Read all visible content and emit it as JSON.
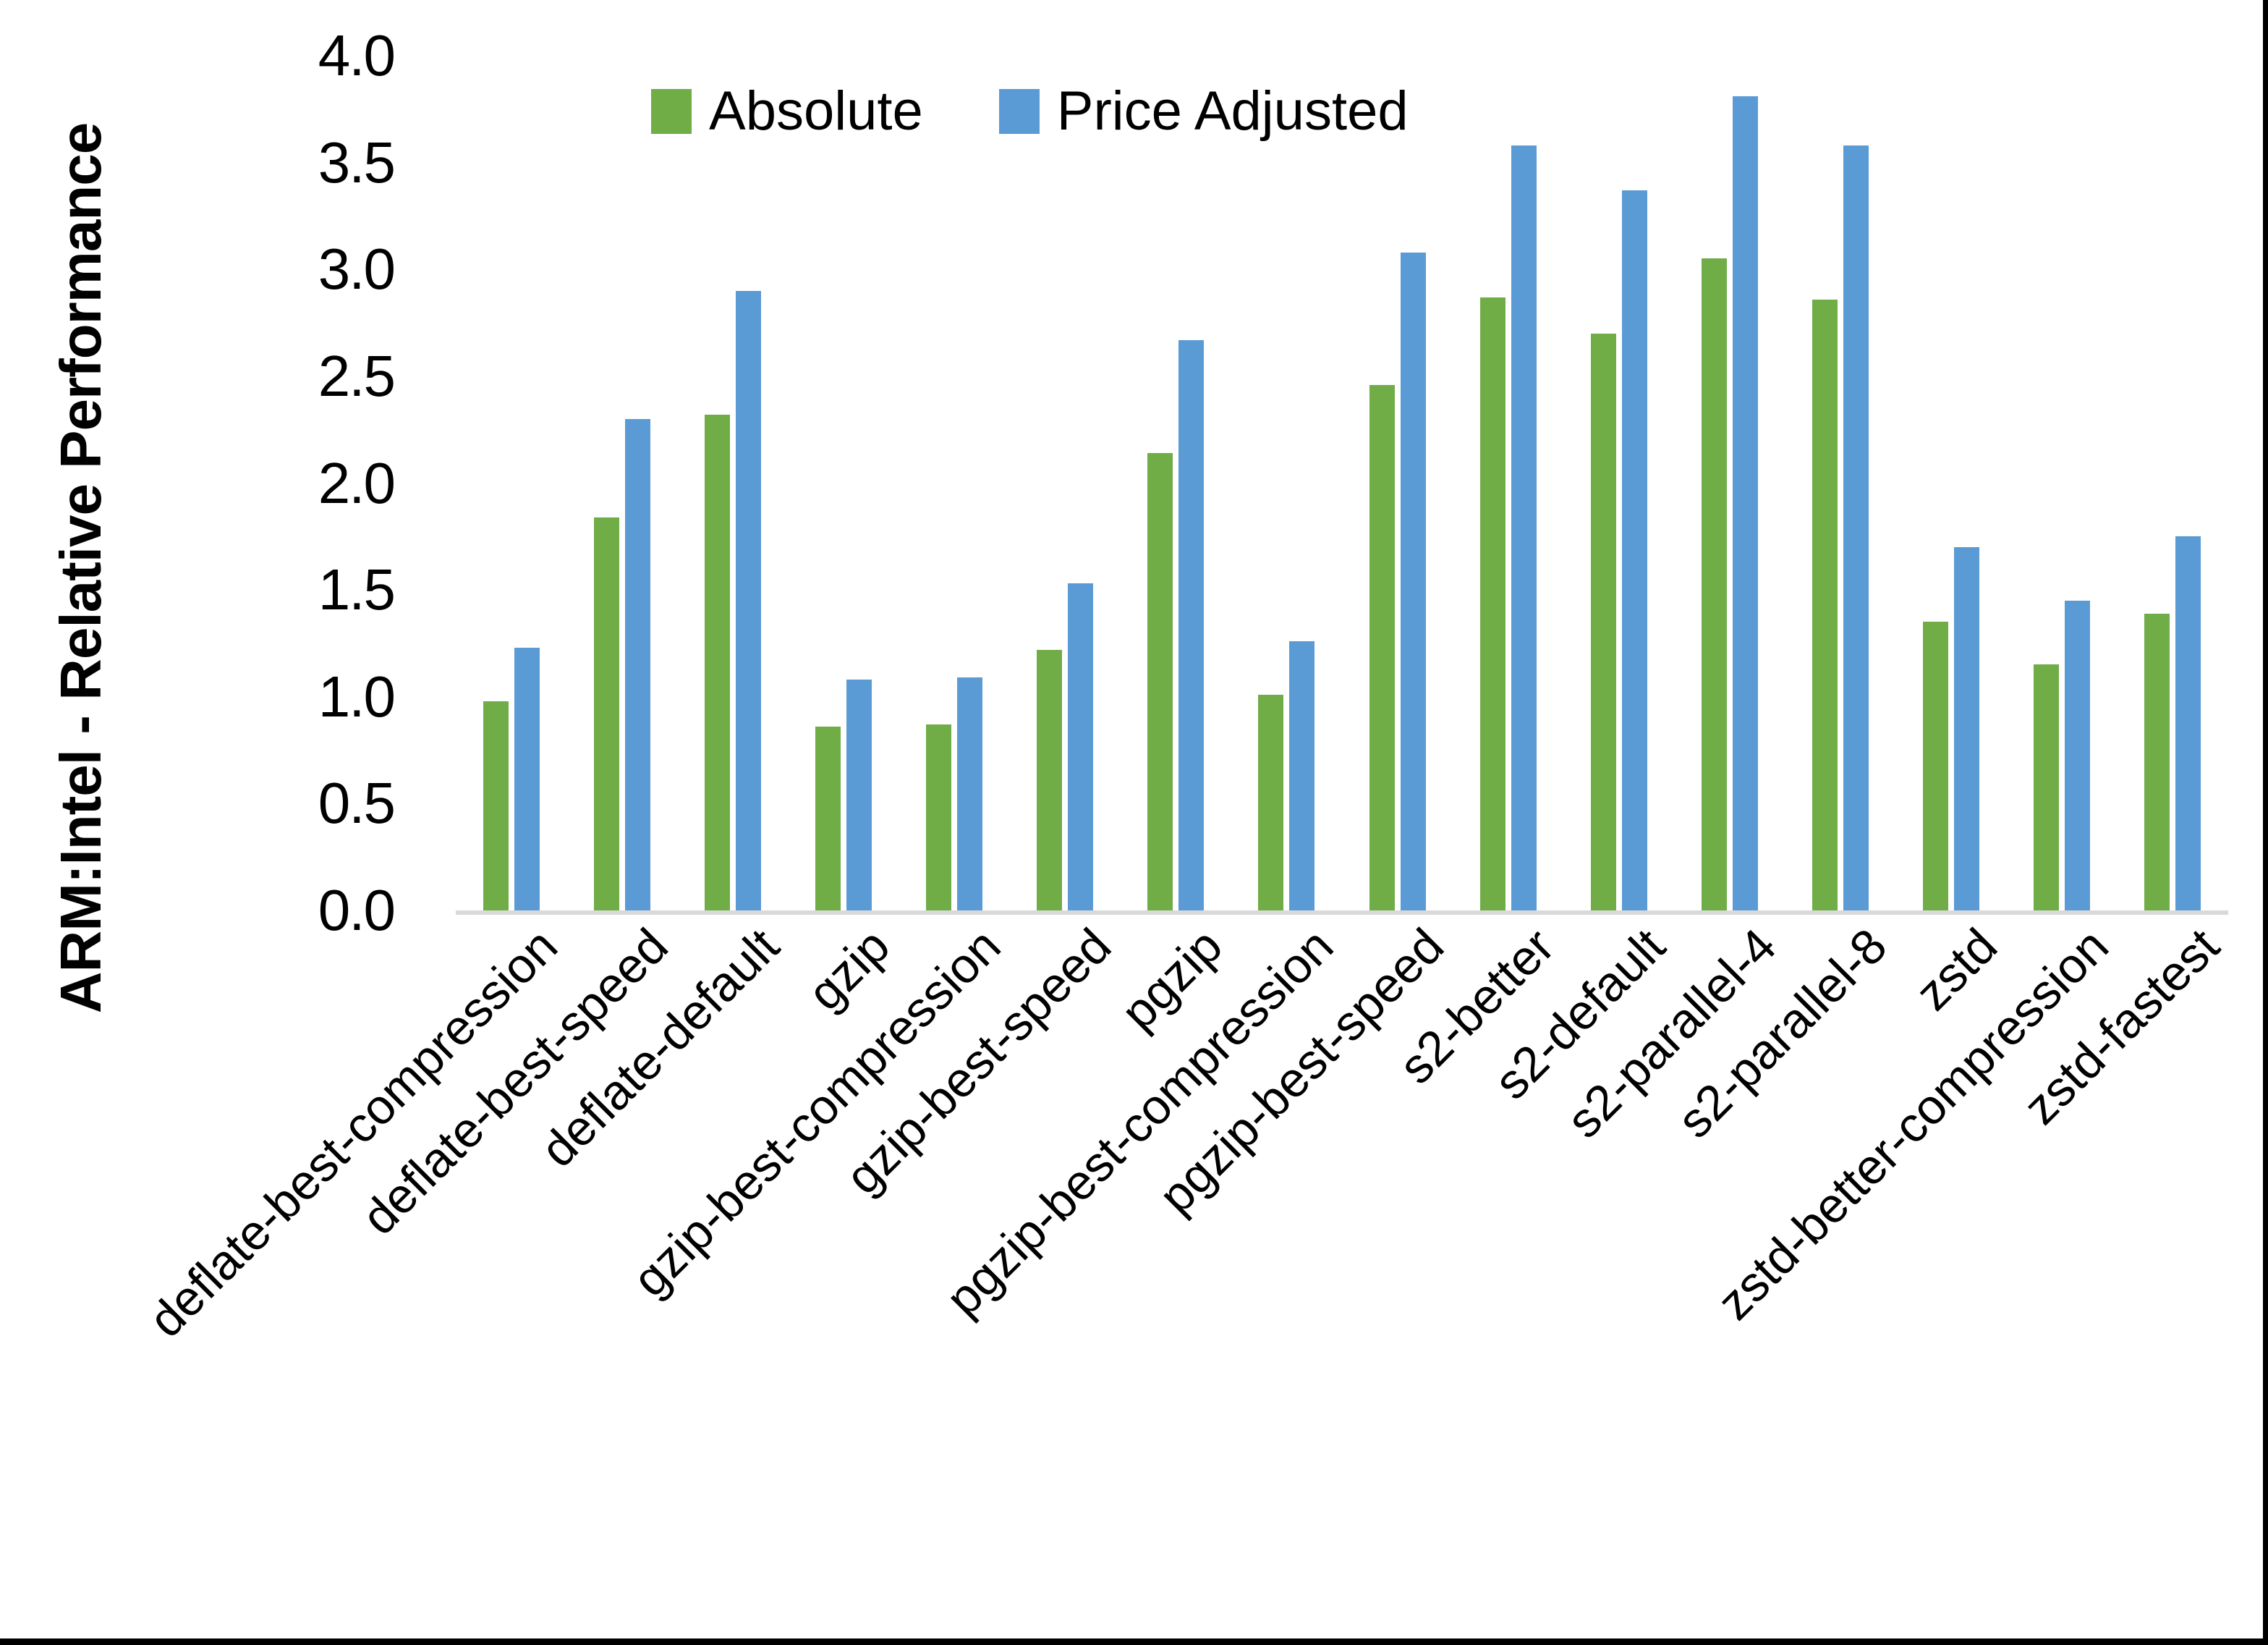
{
  "chart_data": {
    "type": "bar",
    "title": "",
    "xlabel": "",
    "ylabel": "ARM:Intel - Relative Performance",
    "ylim": [
      0,
      4.0
    ],
    "yticks": [
      "0.0",
      "0.5",
      "1.0",
      "1.5",
      "2.0",
      "2.5",
      "3.0",
      "3.5",
      "4.0"
    ],
    "grid": false,
    "legend_position": "top-center",
    "categories": [
      "deflate-best-compression",
      "deflate-best-speed",
      "deflate-default",
      "gzip",
      "gzip-best-compression",
      "gzip-best-speed",
      "pgzip",
      "pgzip-best-compression",
      "pgzip-best-speed",
      "s2-better",
      "s2-default",
      "s2-parallel-4",
      "s2-parallel-8",
      "zstd",
      "zstd-better-compression",
      "zstd-fastest"
    ],
    "series": [
      {
        "name": "Absolute",
        "color": "#70AD47",
        "values": [
          0.98,
          1.84,
          2.32,
          0.86,
          0.87,
          1.22,
          2.14,
          1.01,
          2.46,
          2.87,
          2.7,
          3.05,
          2.86,
          1.35,
          1.15,
          1.39
        ]
      },
      {
        "name": "Price Adjusted",
        "color": "#5B9BD5",
        "values": [
          1.23,
          2.3,
          2.9,
          1.08,
          1.09,
          1.53,
          2.67,
          1.26,
          3.08,
          3.58,
          3.37,
          3.81,
          3.58,
          1.7,
          1.45,
          1.75
        ]
      }
    ],
    "axis_line_color": "#d9d9d9",
    "text_color": "#000000"
  }
}
